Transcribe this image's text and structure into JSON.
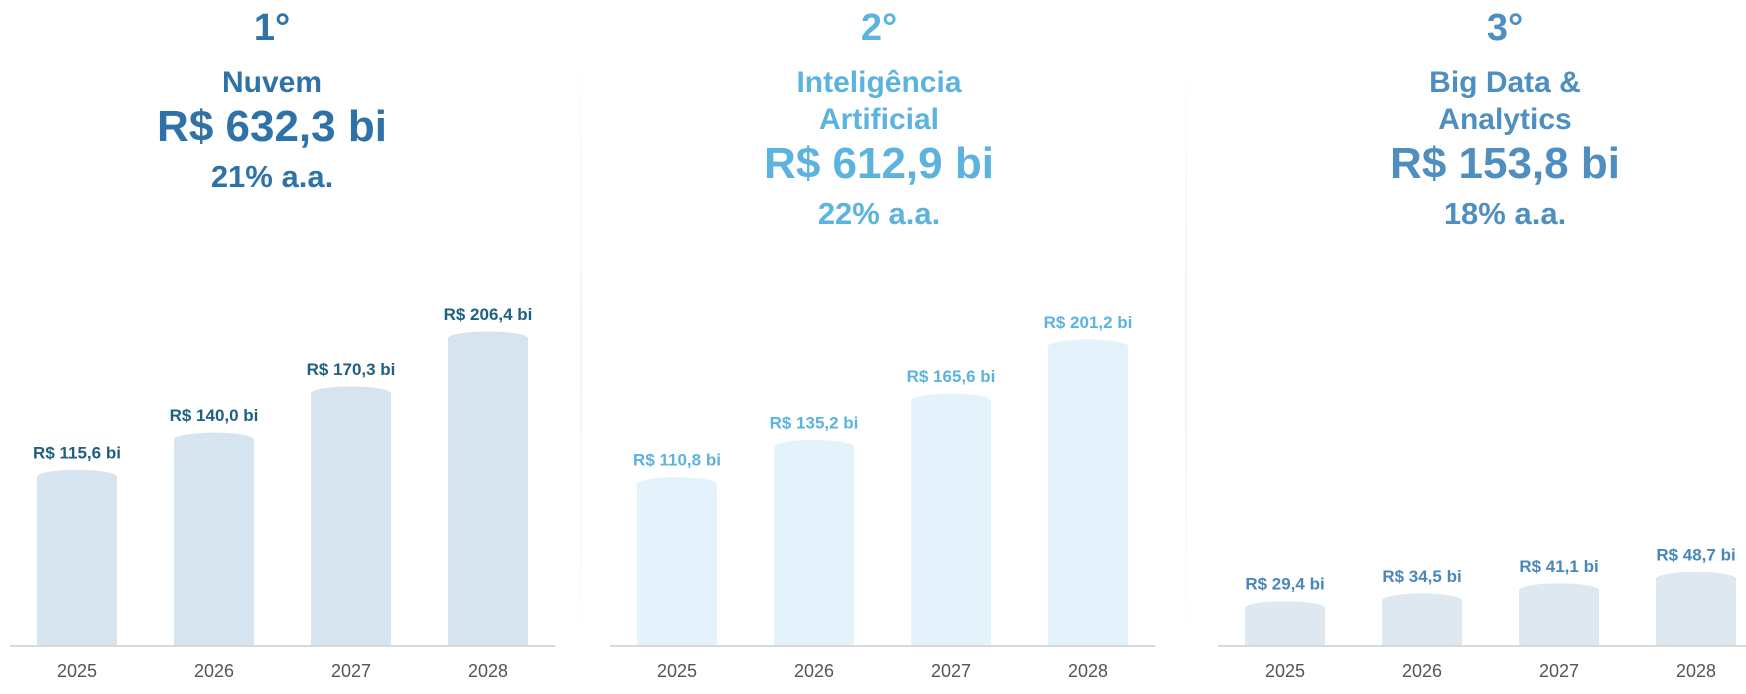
{
  "chart_data": [
    {
      "type": "bar",
      "rank": "1°",
      "title": "Nuvem",
      "total": "R$ 632,3 bi",
      "growth": "21% a.a.",
      "categories": [
        "2025",
        "2026",
        "2027",
        "2028"
      ],
      "values": [
        115.6,
        140.0,
        170.3,
        206.4
      ],
      "value_labels": [
        "R$ 115,6 bi",
        "R$ 140,0 bi",
        "R$ 170,3 bi",
        "R$ 206,4 bi"
      ],
      "color": "#d6e4ef",
      "text_color": "#2f72a8",
      "label_color": "#1f5f80",
      "ylim": [
        0,
        210
      ]
    },
    {
      "type": "bar",
      "rank": "2°",
      "title": "Inteligência Artificial",
      "total": "R$ 612,9 bi",
      "growth": "22% a.a.",
      "categories": [
        "2025",
        "2026",
        "2027",
        "2028"
      ],
      "values": [
        110.8,
        135.2,
        165.6,
        201.2
      ],
      "value_labels": [
        "R$ 110,8 bi",
        "R$ 135,2 bi",
        "R$ 165,6 bi",
        "R$ 201,2 bi"
      ],
      "color": "#e3f2fb",
      "text_color": "#5bb3de",
      "label_color": "#5bb3de",
      "ylim": [
        0,
        210
      ]
    },
    {
      "type": "bar",
      "rank": "3°",
      "title": "Big Data & Analytics",
      "total": "R$ 153,8 bi",
      "growth": "18% a.a.",
      "categories": [
        "2025",
        "2026",
        "2027",
        "2028"
      ],
      "values": [
        29.4,
        34.5,
        41.1,
        48.7
      ],
      "value_labels": [
        "R$ 29,4 bi",
        "R$ 34,5 bi",
        "R$ 41,1 bi",
        "R$ 48,7 bi"
      ],
      "color": "#dde8f1",
      "text_color": "#4f8fc0",
      "label_color": "#4a86b8",
      "ylim": [
        0,
        210
      ]
    }
  ]
}
